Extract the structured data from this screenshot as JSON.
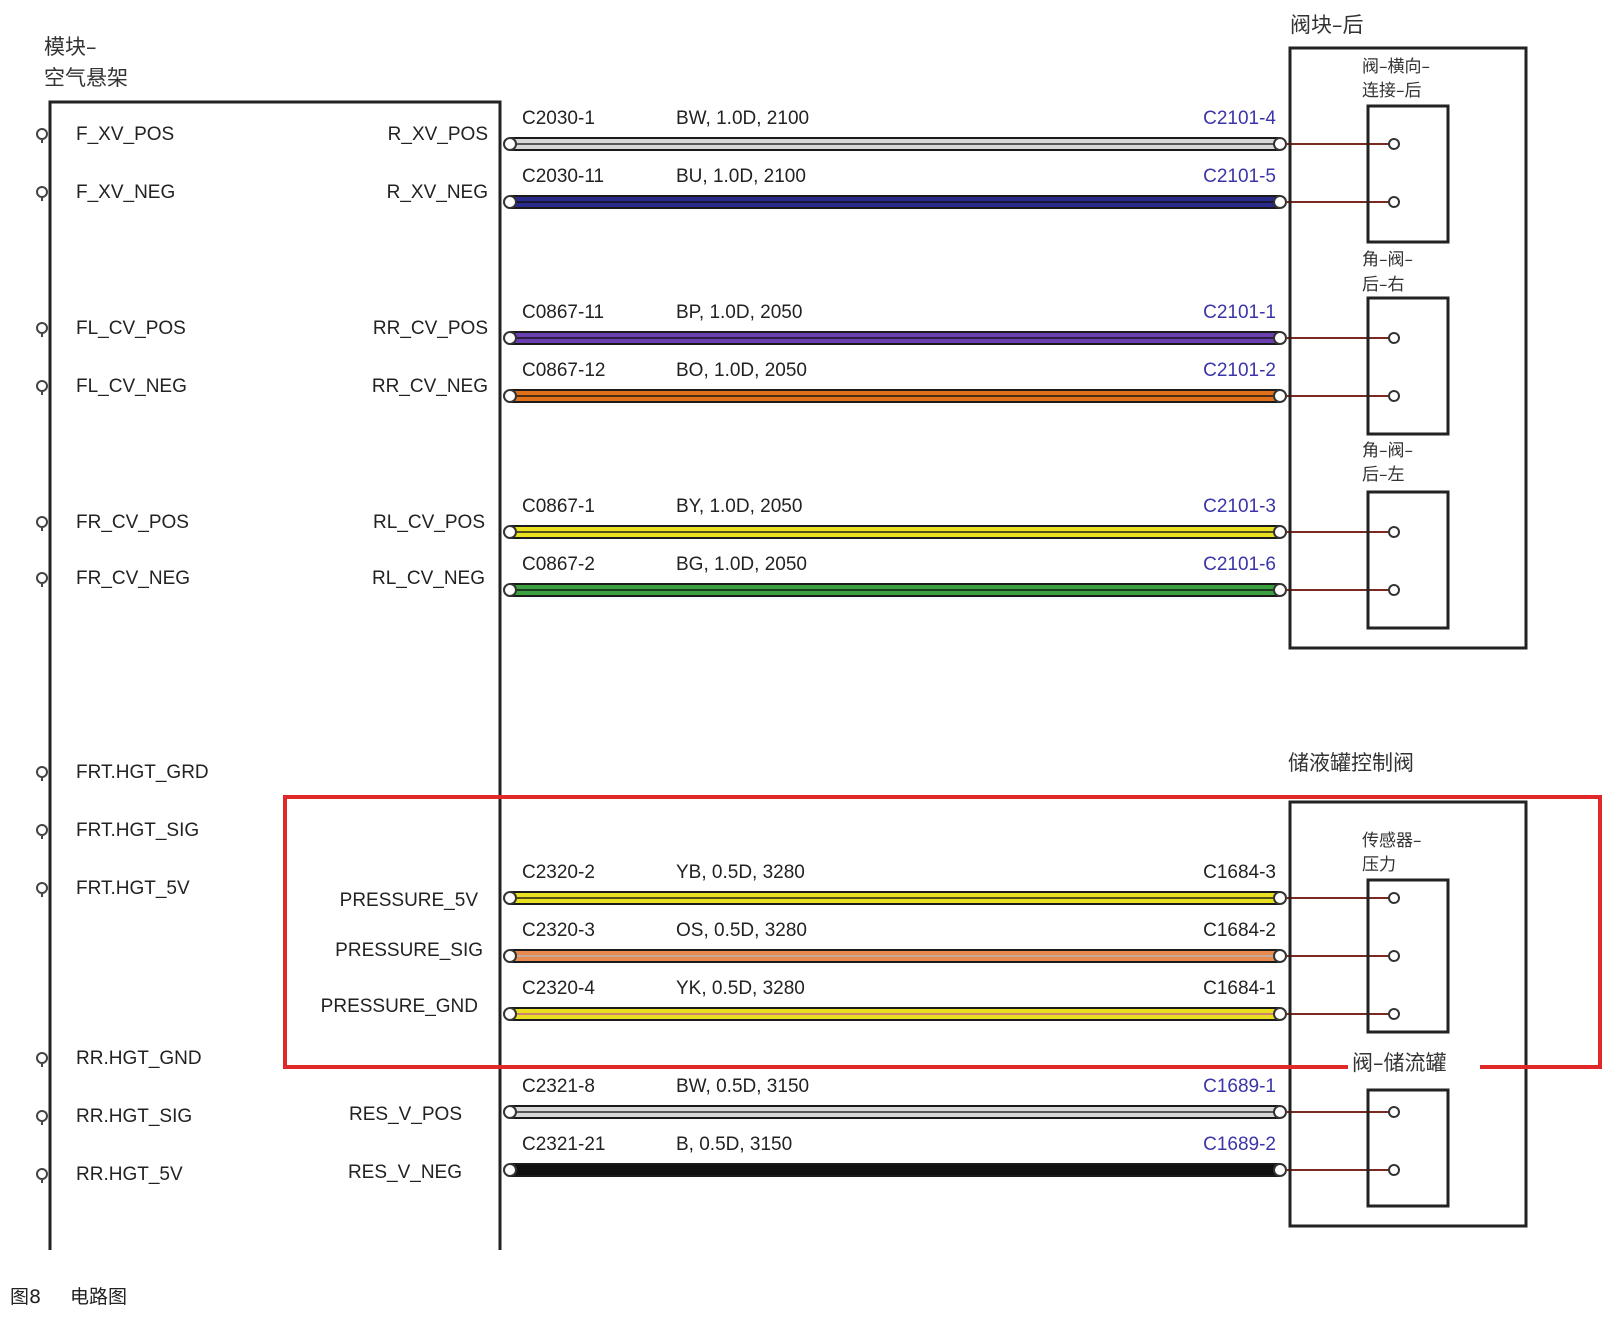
{
  "module": {
    "title_line1": "模块–",
    "title_line2": "空气悬架",
    "left_pins": [
      "F_XV_POS",
      "F_XV_NEG",
      "FL_CV_POS",
      "FL_CV_NEG",
      "FR_CV_POS",
      "FR_CV_NEG",
      "FRT.HGT_GRD",
      "FRT.HGT_SIG",
      "FRT.HGT_5V",
      "RR.HGT_GND",
      "RR.HGT_SIG",
      "RR.HGT_5V"
    ],
    "right_pins": [
      "R_XV_POS",
      "R_XV_NEG",
      "RR_CV_POS",
      "RR_CV_NEG",
      "RL_CV_POS",
      "RL_CV_NEG",
      "PRESSURE_5V",
      "PRESSURE_SIG",
      "PRESSURE_GND",
      "RES_V_POS",
      "RES_V_NEG"
    ]
  },
  "valve_block": {
    "title": "阀块–后",
    "sub1_line1": "阀–横向–",
    "sub1_line2": "连接–后",
    "sub2_line1": "角–阀–",
    "sub2_line2": "后–右",
    "sub3_line1": "角–阀–",
    "sub3_line2": "后–左"
  },
  "reservoir_block": {
    "title": "储液罐控制阀",
    "sensor_line1": "传感器–",
    "sensor_line2": "压力",
    "valve_label": "阀–储流罐"
  },
  "wires": [
    {
      "from": "C2030-1",
      "spec": "BW, 1.0D, 2100",
      "to": "C2101-4",
      "color": "#d8d8d8",
      "stripe": "#222222"
    },
    {
      "from": "C2030-11",
      "spec": "BU, 1.0D, 2100",
      "to": "C2101-5",
      "color": "#2a2a8a",
      "stripe": "#111111"
    },
    {
      "from": "C0867-11",
      "spec": "BP, 1.0D, 2050",
      "to": "C2101-1",
      "color": "#6a3fb0",
      "stripe": "#111111"
    },
    {
      "from": "C0867-12",
      "spec": "BO, 1.0D, 2050",
      "to": "C2101-2",
      "color": "#e0701a",
      "stripe": "#111111"
    },
    {
      "from": "C0867-1",
      "spec": "BY, 1.0D, 2050",
      "to": "C2101-3",
      "color": "#e8e020",
      "stripe": "#111111"
    },
    {
      "from": "C0867-2",
      "spec": "BG, 1.0D, 2050",
      "to": "C2101-6",
      "color": "#3aa040",
      "stripe": "#111111"
    },
    {
      "from": "C2320-2",
      "spec": "YB, 0.5D, 3280",
      "to": "C1684-3",
      "color": "#e8e020",
      "stripe": "#111111"
    },
    {
      "from": "C2320-3",
      "spec": "OS, 0.5D, 3280",
      "to": "C1684-2",
      "color": "#e88a50",
      "stripe": "#b8b8b8"
    },
    {
      "from": "C2320-4",
      "spec": "YK, 0.5D, 3280",
      "to": "C1684-1",
      "color": "#e8e020",
      "stripe": "#c05a90"
    },
    {
      "from": "C2321-8",
      "spec": "BW, 0.5D, 3150",
      "to": "C1689-1",
      "color": "#d8d8d8",
      "stripe": "#222222"
    },
    {
      "from": "C2321-21",
      "spec": "B, 0.5D, 3150",
      "to": "C1689-2",
      "color": "#111111",
      "stripe": "#111111"
    }
  ],
  "caption": {
    "fig": "图8",
    "text": "电路图"
  },
  "colors": {
    "highlight": "#e02828",
    "line": "#222222",
    "connector_blue": "#3a35a8"
  }
}
